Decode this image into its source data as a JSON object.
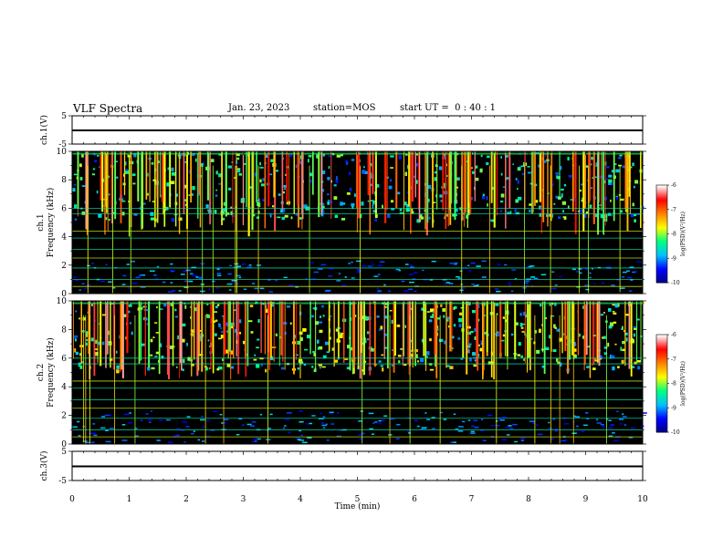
{
  "header": {
    "title": "VLF Spectra",
    "date": "Jan. 23, 2023",
    "station": "station=MOS",
    "start_ut": "start UT =  0 : 40 : 1"
  },
  "chart_data": [
    {
      "type": "line",
      "panel": "ch1-voltage",
      "ylabel": "ch.1(V)",
      "ylim": [
        -5,
        5
      ],
      "yticks": [
        "5",
        "-5"
      ],
      "series": [
        {
          "x": [
            0,
            10
          ],
          "y": [
            0,
            0
          ]
        }
      ]
    },
    {
      "type": "heatmap",
      "panel": "ch1-spectrogram",
      "ylabel": "Frequency (kHz)",
      "channel_label": "ch.1",
      "ylim": [
        0,
        10
      ],
      "yticks": [
        "0",
        "2",
        "4",
        "6",
        "8",
        "10"
      ],
      "colorbar": {
        "label": "log(PSD)(V²/Hz)",
        "range": [
          -10,
          -6
        ],
        "ticks": [
          "-6",
          "-7",
          "-8",
          "-9",
          "-10"
        ]
      },
      "notes": "broadband sferics in 5–10 kHz band; vertical streaks; horizontal lines near 0.5,1,2.5,3,6 kHz"
    },
    {
      "type": "heatmap",
      "panel": "ch2-spectrogram",
      "ylabel": "Frequency (kHz)",
      "channel_label": "ch.2",
      "ylim": [
        0,
        10
      ],
      "yticks": [
        "0",
        "2",
        "4",
        "6",
        "8",
        "10"
      ],
      "colorbar": {
        "label": "log(PSD)(V²/Hz)",
        "range": [
          -10,
          -6
        ],
        "ticks": [
          "-6",
          "-7",
          "-8",
          "-9",
          "-10"
        ]
      },
      "notes": "stronger emission 5–9 kHz band with red streaks"
    },
    {
      "type": "line",
      "panel": "ch3-voltage",
      "ylabel": "ch.3(V)",
      "ylim": [
        -5,
        5
      ],
      "yticks": [
        "5",
        "-5"
      ],
      "series": [
        {
          "x": [
            0,
            10
          ],
          "y": [
            0,
            0
          ]
        }
      ]
    }
  ],
  "xaxis": {
    "label": "Time (min)",
    "ticks": [
      "0",
      "1",
      "2",
      "3",
      "4",
      "5",
      "6",
      "7",
      "8",
      "9",
      "10"
    ]
  },
  "colors": {
    "background": "#000000",
    "colormap": [
      "#000080",
      "#0000ff",
      "#00c0ff",
      "#00ff80",
      "#ffff00",
      "#ff8000",
      "#ff0000",
      "#ffffff"
    ]
  }
}
